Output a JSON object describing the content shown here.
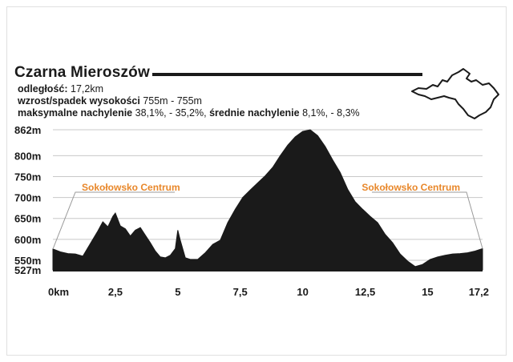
{
  "title": "Czarna Mieroszów",
  "info": {
    "distance_label": "odległość:",
    "distance_value": "17,2km",
    "climb_label": "wzrost/spadek wysokości",
    "climb_value": "755m - 755m",
    "grade_label": "maksymalne nachylenie",
    "grade_value": "38,1%, - 35,2%,",
    "avg_grade_label": "średnie nachylenie",
    "avg_grade_value": "8,1%, - 8,3%"
  },
  "colors": {
    "profile_fill": "#1a1a1a",
    "gridline": "#c8c8c8",
    "annotation": "#e8872a"
  },
  "chart_data": {
    "type": "area",
    "title": "Czarna Mieroszów",
    "xlabel": "",
    "ylabel": "",
    "xlim": [
      0,
      17.2
    ],
    "ylim": [
      527,
      862
    ],
    "x_ticks": [
      "0km",
      "2,5",
      "5",
      "7,5",
      "10",
      "12,5",
      "15",
      "17,2"
    ],
    "x_tick_values": [
      0,
      2.5,
      5,
      7.5,
      10,
      12.5,
      15,
      17.2
    ],
    "y_ticks": [
      "862m",
      "800m",
      "750m",
      "700m",
      "650m",
      "600m",
      "550m",
      "527m"
    ],
    "y_tick_values": [
      862,
      800,
      750,
      700,
      650,
      600,
      550,
      527
    ],
    "grid": true,
    "annotations": [
      {
        "text": "Sokołowsko Centrum",
        "x": 0
      },
      {
        "text": "Sokołowsko Centrum",
        "x": 17.2
      }
    ],
    "series": [
      {
        "x": [
          0,
          0.3,
          0.6,
          0.9,
          1.2,
          1.5,
          1.8,
          2.0,
          2.2,
          2.4,
          2.5,
          2.7,
          2.9,
          3.1,
          3.3,
          3.5,
          3.7,
          3.9,
          4.1,
          4.3,
          4.5,
          4.7,
          4.9,
          5.0,
          5.1,
          5.3,
          5.5,
          5.8,
          6.1,
          6.4,
          6.7,
          7.0,
          7.3,
          7.6,
          7.9,
          8.2,
          8.5,
          8.8,
          9.1,
          9.4,
          9.7,
          10.0,
          10.3,
          10.6,
          10.9,
          11.2,
          11.5,
          11.8,
          12.1,
          12.4,
          12.7,
          13.0,
          13.3,
          13.6,
          13.9,
          14.2,
          14.5,
          14.8,
          15.1,
          15.4,
          15.7,
          16.0,
          16.3,
          16.6,
          16.9,
          17.2
        ],
        "y": [
          577,
          570,
          566,
          565,
          560,
          590,
          620,
          642,
          630,
          655,
          663,
          632,
          625,
          608,
          622,
          628,
          610,
          592,
          572,
          558,
          556,
          562,
          578,
          622,
          598,
          556,
          552,
          552,
          568,
          588,
          598,
          640,
          672,
          700,
          718,
          735,
          752,
          772,
          800,
          825,
          845,
          858,
          862,
          848,
          822,
          790,
          760,
          720,
          690,
          672,
          655,
          640,
          612,
          592,
          565,
          548,
          535,
          540,
          552,
          558,
          562,
          565,
          566,
          568,
          572,
          578
        ]
      }
    ]
  }
}
